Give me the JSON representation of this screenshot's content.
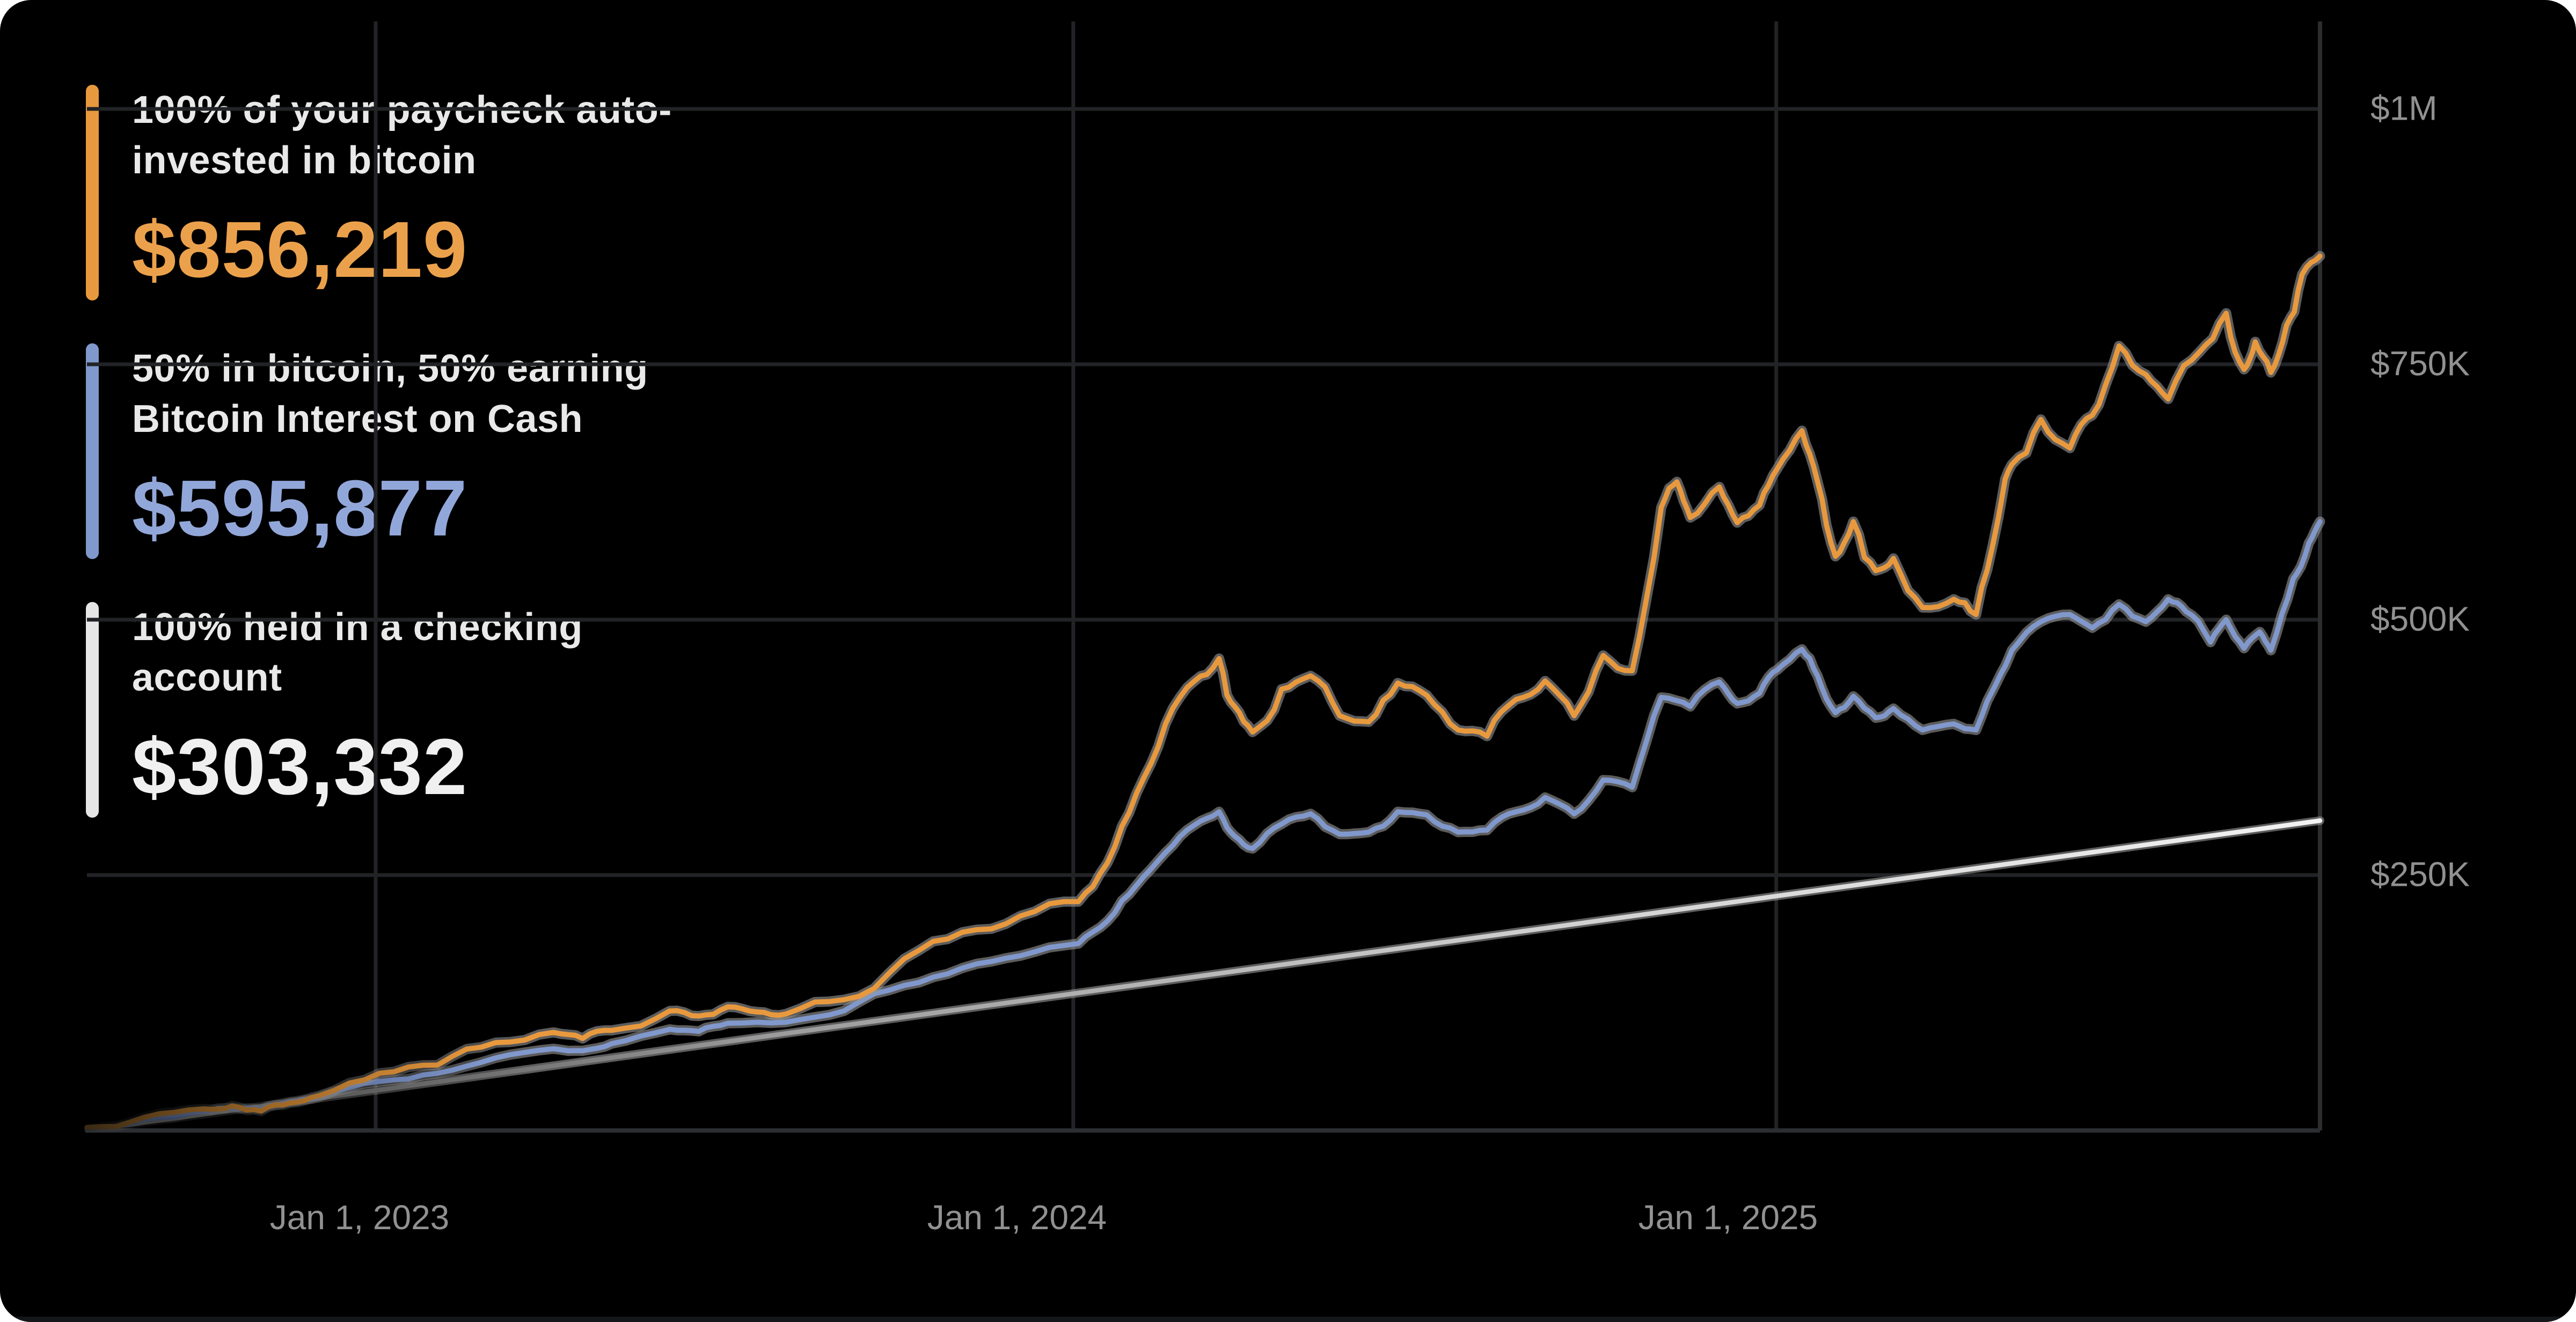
{
  "legend": {
    "items": [
      {
        "label_line1": "100% of your paycheck auto-",
        "label_line2": "invested in bitcoin",
        "amount": "$856,219",
        "bar_color": "#E8993E",
        "amount_color": "#EBA14B"
      },
      {
        "label_line1": "50% in bitcoin, 50% earning",
        "label_line2": "Bitcoin Interest on Cash",
        "amount": "$595,877",
        "bar_color": "#8098CC",
        "amount_color": "#92A7D9"
      },
      {
        "label_line1": "100% held in a checking",
        "label_line2": "account",
        "amount": "$303,332",
        "bar_color": "#E6E6E6",
        "amount_color": "#F0F0F0"
      }
    ]
  },
  "chart_data": {
    "type": "line",
    "title": "",
    "xlabel": "",
    "ylabel": "",
    "value_unit": "USD thousands",
    "x_domain_note": "approx Aug 2022 to Oct 2025, x stored as 0..1 fraction of plot width",
    "ylim_k": [
      0,
      1086
    ],
    "grid": true,
    "legend_position": "top-left overlay",
    "style": {
      "background": "#000000",
      "gridline_color": "#212326",
      "axis_color": "#2b2d31",
      "halo_color": "#999999",
      "tick_color": "#919191",
      "bottom_strip_color": "#15161a"
    },
    "x_gridlines": [
      {
        "label": "Jan 1, 2023",
        "f": 0.1293
      },
      {
        "label": "Jan 1, 2024",
        "f": 0.4417
      },
      {
        "label": "Jan 1, 2025",
        "f": 0.7565
      }
    ],
    "y_gridlines": [
      {
        "label": "$1M",
        "value": 1000
      },
      {
        "label": "$750K",
        "value": 750
      },
      {
        "label": "$500K",
        "value": 500
      },
      {
        "label": "$250K",
        "value": 250
      }
    ],
    "series": [
      {
        "name": "100% of your paycheck auto-invested in bitcoin",
        "color": "#E8993E",
        "final_value_usd": 856219,
        "noise": 1.0,
        "seed": 7,
        "points": [
          [
            0.0,
            3
          ],
          [
            0.026,
            13
          ],
          [
            0.052,
            21
          ],
          [
            0.065,
            24
          ],
          [
            0.078,
            19
          ],
          [
            0.091,
            27
          ],
          [
            0.104,
            34
          ],
          [
            0.131,
            56
          ],
          [
            0.157,
            64
          ],
          [
            0.183,
            86
          ],
          [
            0.209,
            96
          ],
          [
            0.222,
            90
          ],
          [
            0.235,
            98
          ],
          [
            0.261,
            117
          ],
          [
            0.274,
            112
          ],
          [
            0.287,
            121
          ],
          [
            0.3,
            116
          ],
          [
            0.313,
            114
          ],
          [
            0.339,
            128
          ],
          [
            0.366,
            168
          ],
          [
            0.392,
            194
          ],
          [
            0.418,
            210
          ],
          [
            0.444,
            224
          ],
          [
            0.457,
            262
          ],
          [
            0.47,
            330
          ],
          [
            0.483,
            398
          ],
          [
            0.496,
            440
          ],
          [
            0.507,
            462
          ],
          [
            0.514,
            415
          ],
          [
            0.522,
            390
          ],
          [
            0.535,
            432
          ],
          [
            0.548,
            445
          ],
          [
            0.561,
            406
          ],
          [
            0.574,
            400
          ],
          [
            0.587,
            438
          ],
          [
            0.6,
            426
          ],
          [
            0.614,
            392
          ],
          [
            0.627,
            386
          ],
          [
            0.64,
            422
          ],
          [
            0.653,
            440
          ],
          [
            0.666,
            406
          ],
          [
            0.679,
            465
          ],
          [
            0.692,
            450
          ],
          [
            0.705,
            610
          ],
          [
            0.712,
            635
          ],
          [
            0.718,
            600
          ],
          [
            0.731,
            630
          ],
          [
            0.739,
            595
          ],
          [
            0.749,
            612
          ],
          [
            0.757,
            648
          ],
          [
            0.768,
            685
          ],
          [
            0.775,
            635
          ],
          [
            0.783,
            562
          ],
          [
            0.791,
            596
          ],
          [
            0.801,
            548
          ],
          [
            0.809,
            560
          ],
          [
            0.822,
            512
          ],
          [
            0.836,
            520
          ],
          [
            0.846,
            505
          ],
          [
            0.856,
            600
          ],
          [
            0.862,
            652
          ],
          [
            0.875,
            696
          ],
          [
            0.888,
            668
          ],
          [
            0.898,
            700
          ],
          [
            0.91,
            768
          ],
          [
            0.922,
            740
          ],
          [
            0.932,
            716
          ],
          [
            0.946,
            762
          ],
          [
            0.958,
            800
          ],
          [
            0.966,
            745
          ],
          [
            0.971,
            772
          ],
          [
            0.978,
            742
          ],
          [
            0.985,
            788
          ],
          [
            0.992,
            838
          ],
          [
            1.0,
            856
          ]
        ]
      },
      {
        "name": "50% in bitcoin, 50% earning Bitcoin Interest on Cash",
        "color": "#8098CC",
        "final_value_usd": 595877,
        "noise": 0.65,
        "seed": 13,
        "points": [
          [
            0.0,
            2
          ],
          [
            0.026,
            11
          ],
          [
            0.052,
            19
          ],
          [
            0.065,
            22
          ],
          [
            0.078,
            21
          ],
          [
            0.091,
            28
          ],
          [
            0.104,
            33
          ],
          [
            0.131,
            48
          ],
          [
            0.157,
            56
          ],
          [
            0.183,
            71
          ],
          [
            0.209,
            80
          ],
          [
            0.222,
            78
          ],
          [
            0.235,
            85
          ],
          [
            0.261,
            99
          ],
          [
            0.274,
            97
          ],
          [
            0.287,
            105
          ],
          [
            0.313,
            106
          ],
          [
            0.339,
            117
          ],
          [
            0.366,
            142
          ],
          [
            0.392,
            159
          ],
          [
            0.418,
            171
          ],
          [
            0.444,
            183
          ],
          [
            0.457,
            205
          ],
          [
            0.47,
            240
          ],
          [
            0.483,
            272
          ],
          [
            0.496,
            299
          ],
          [
            0.507,
            312
          ],
          [
            0.514,
            288
          ],
          [
            0.522,
            276
          ],
          [
            0.535,
            300
          ],
          [
            0.548,
            310
          ],
          [
            0.561,
            290
          ],
          [
            0.574,
            292
          ],
          [
            0.587,
            312
          ],
          [
            0.6,
            309
          ],
          [
            0.614,
            292
          ],
          [
            0.627,
            294
          ],
          [
            0.64,
            312
          ],
          [
            0.653,
            326
          ],
          [
            0.666,
            310
          ],
          [
            0.679,
            343
          ],
          [
            0.692,
            336
          ],
          [
            0.705,
            424
          ],
          [
            0.718,
            415
          ],
          [
            0.731,
            439
          ],
          [
            0.739,
            418
          ],
          [
            0.749,
            428
          ],
          [
            0.757,
            451
          ],
          [
            0.768,
            471
          ],
          [
            0.775,
            445
          ],
          [
            0.783,
            409
          ],
          [
            0.791,
            425
          ],
          [
            0.801,
            404
          ],
          [
            0.809,
            413
          ],
          [
            0.822,
            392
          ],
          [
            0.836,
            398
          ],
          [
            0.846,
            392
          ],
          [
            0.856,
            442
          ],
          [
            0.862,
            470
          ],
          [
            0.875,
            498
          ],
          [
            0.888,
            505
          ],
          [
            0.898,
            492
          ],
          [
            0.91,
            515
          ],
          [
            0.922,
            498
          ],
          [
            0.932,
            520
          ],
          [
            0.94,
            508
          ],
          [
            0.951,
            478
          ],
          [
            0.958,
            500
          ],
          [
            0.966,
            472
          ],
          [
            0.973,
            488
          ],
          [
            0.978,
            470
          ],
          [
            0.988,
            540
          ],
          [
            0.995,
            575
          ],
          [
            1.0,
            596
          ]
        ]
      },
      {
        "name": "100% held in a checking account",
        "color": "#ECECEC",
        "final_value_usd": 303332,
        "noise": 0,
        "seed": 1,
        "points": [
          [
            0.0,
            0
          ],
          [
            1.0,
            303.3
          ]
        ]
      }
    ]
  }
}
